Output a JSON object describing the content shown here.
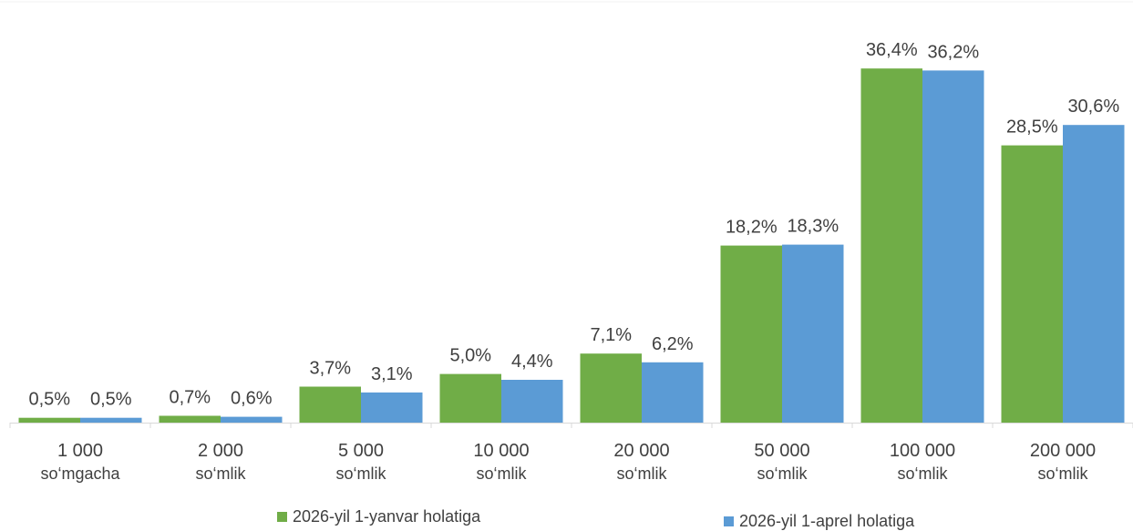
{
  "chart_data": {
    "type": "bar",
    "title": "",
    "xlabel": "",
    "ylabel": "",
    "ylim": [
      0,
      40
    ],
    "grid": false,
    "legend_position": "bottom",
    "categories": [
      [
        "1 000",
        "so‘mgacha"
      ],
      [
        "2 000",
        "so‘mlik"
      ],
      [
        "5 000",
        "so‘mlik"
      ],
      [
        "10 000",
        "so‘mlik"
      ],
      [
        "20 000",
        "so‘mlik"
      ],
      [
        "50 000",
        "so‘mlik"
      ],
      [
        "100 000",
        "so‘mlik"
      ],
      [
        "200 000",
        "so‘mlik"
      ]
    ],
    "series": [
      {
        "name": "2026-yil 1-yanvar holatiga",
        "color": "#70AD47",
        "values": [
          0.5,
          0.7,
          3.7,
          5.0,
          7.1,
          18.2,
          36.4,
          28.5
        ],
        "labels": [
          "0,5%",
          "0,7%",
          "3,7%",
          "5,0%",
          "7,1%",
          "18,2%",
          "36,4%",
          "28,5%"
        ]
      },
      {
        "name": "2026-yil 1-aprel holatiga",
        "color": "#5B9BD5",
        "values": [
          0.5,
          0.6,
          3.1,
          4.4,
          6.2,
          18.3,
          36.2,
          30.6
        ],
        "labels": [
          "0,5%",
          "0,6%",
          "3,1%",
          "4,4%",
          "6,2%",
          "18,3%",
          "36,2%",
          "30,6%"
        ]
      }
    ]
  }
}
